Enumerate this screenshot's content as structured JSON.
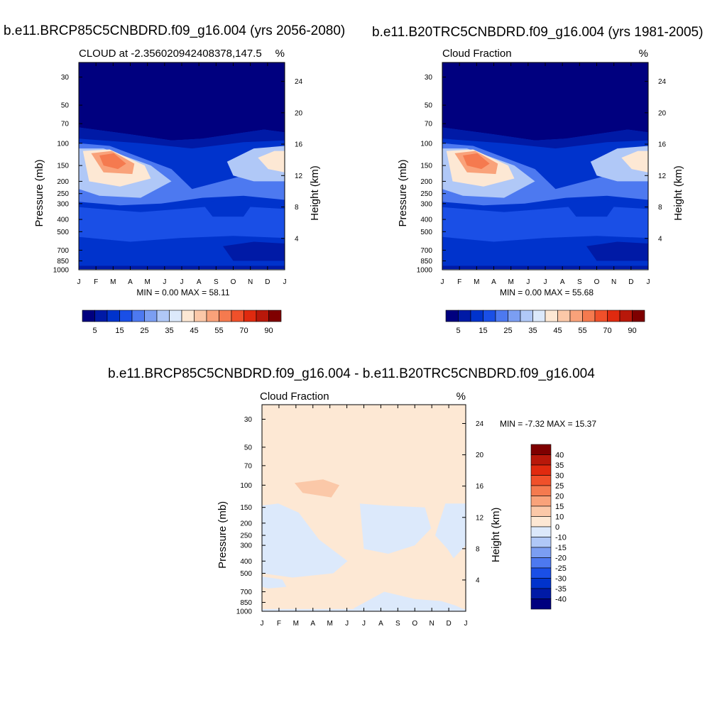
{
  "titles": {
    "top_left": "b.e11.BRCP85C5CNBDRD.f09_g16.004 (yrs 2056-2080)",
    "top_right": "b.e11.B20TRC5CNBDRD.f09_g16.004 (yrs 1981-2005)",
    "bottom": "b.e11.BRCP85C5CNBDRD.f09_g16.004 - b.e11.B20TRC5CNBDRD.f09_g16.004"
  },
  "chart_data": [
    {
      "type": "heatmap",
      "id": "p1",
      "subtitle": "CLOUD at -2.356020942408378,147.5",
      "units": "%",
      "ylabel": "Pressure (mb)",
      "y2label": "Height (km)",
      "x_ticks": [
        "J",
        "F",
        "M",
        "A",
        "M",
        "J",
        "J",
        "A",
        "S",
        "O",
        "N",
        "D",
        "J"
      ],
      "pressure_ticks": [
        30,
        50,
        70,
        100,
        150,
        200,
        250,
        300,
        400,
        500,
        700,
        850,
        1000
      ],
      "height_ticks": [
        24,
        20,
        16,
        12,
        8,
        4
      ],
      "stats": "MIN =   0.00 MAX =  58.11",
      "colorbar": {
        "labels": [
          "5",
          "15",
          "25",
          "35",
          "45",
          "55",
          "70",
          "90"
        ],
        "colors": [
          "#00007f",
          "#001aa6",
          "#0033cc",
          "#1a4fe6",
          "#4d79f0",
          "#7b9ef2",
          "#b0c8f7",
          "#dce9fb",
          "#fde8d4",
          "#fbc8a8",
          "#f9a27a",
          "#f57a4f",
          "#f0502a",
          "#e02a0f",
          "#b8180a",
          "#7f0000"
        ]
      }
    },
    {
      "type": "heatmap",
      "id": "p2",
      "subtitle": "Cloud Fraction",
      "units": "%",
      "ylabel": "Pressure (mb)",
      "y2label": "Height (km)",
      "x_ticks": [
        "J",
        "F",
        "M",
        "A",
        "M",
        "J",
        "J",
        "A",
        "S",
        "O",
        "N",
        "D",
        "J"
      ],
      "pressure_ticks": [
        30,
        50,
        70,
        100,
        150,
        200,
        250,
        300,
        400,
        500,
        700,
        850,
        1000
      ],
      "height_ticks": [
        24,
        20,
        16,
        12,
        8,
        4
      ],
      "stats": "MIN =   0.00 MAX =  55.68",
      "colorbar": {
        "labels": [
          "5",
          "15",
          "25",
          "35",
          "45",
          "55",
          "70",
          "90"
        ],
        "colors": [
          "#00007f",
          "#001aa6",
          "#0033cc",
          "#1a4fe6",
          "#4d79f0",
          "#7b9ef2",
          "#b0c8f7",
          "#dce9fb",
          "#fde8d4",
          "#fbc8a8",
          "#f9a27a",
          "#f57a4f",
          "#f0502a",
          "#e02a0f",
          "#b8180a",
          "#7f0000"
        ]
      }
    },
    {
      "type": "heatmap",
      "id": "p3",
      "subtitle": "Cloud Fraction",
      "units": "%",
      "ylabel": "Pressure (mb)",
      "y2label": "Height (km)",
      "x_ticks": [
        "J",
        "F",
        "M",
        "A",
        "M",
        "J",
        "J",
        "A",
        "S",
        "O",
        "N",
        "D",
        "J"
      ],
      "pressure_ticks": [
        30,
        50,
        70,
        100,
        150,
        200,
        250,
        300,
        400,
        500,
        700,
        850,
        1000
      ],
      "height_ticks": [
        24,
        20,
        16,
        12,
        8,
        4
      ],
      "stats": "MIN =  -7.32 MAX =  15.37",
      "colorbar": {
        "labels": [
          "40",
          "35",
          "30",
          "25",
          "20",
          "15",
          "10",
          "0",
          "-10",
          "-15",
          "-20",
          "-25",
          "-30",
          "-35",
          "-40"
        ],
        "colors": [
          "#7f0000",
          "#b8180a",
          "#e02a0f",
          "#f0502a",
          "#f57a4f",
          "#f9a27a",
          "#fbc8a8",
          "#fde8d4",
          "#dce9fb",
          "#b0c8f7",
          "#7b9ef2",
          "#4d79f0",
          "#1a4fe6",
          "#0033cc",
          "#001aa6",
          "#00007f"
        ]
      }
    }
  ]
}
